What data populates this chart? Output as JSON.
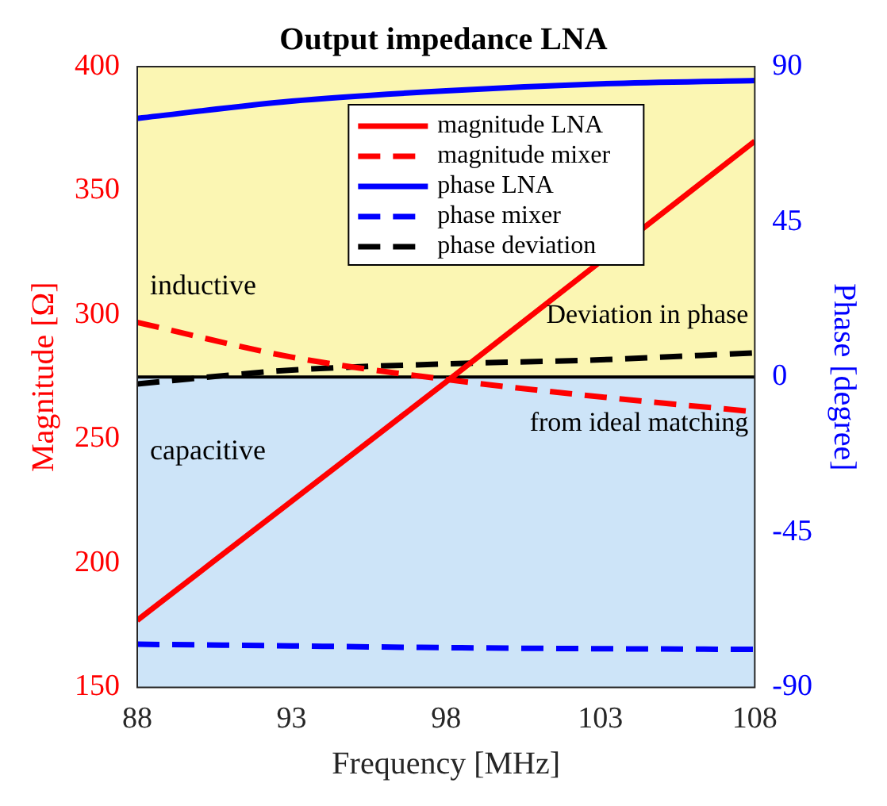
{
  "chart_data": {
    "type": "line",
    "title": "Output impedance LNA",
    "xlabel": "Frequency [MHz]",
    "ylabel": "Magnitude [Ω]",
    "y2label": "Phase [degree]",
    "x": [
      88,
      93,
      98,
      103,
      108
    ],
    "series": [
      {
        "name": "magnitude LNA",
        "color": "#ff0000",
        "line_style": "solid",
        "x": [
          88,
          93,
          98,
          108
        ],
        "values": [
          177,
          225,
          273,
          370
        ]
      },
      {
        "name": "magnitude mixer",
        "color": "#ff0000",
        "line_style": "dashed",
        "values": [
          297,
          283,
          274,
          267,
          261
        ]
      },
      {
        "name": "phase LNA",
        "color": "#0000ff",
        "line_style": "solid",
        "axis": "y2",
        "values": [
          75,
          80,
          83,
          85,
          86
        ]
      },
      {
        "name": "phase mixer",
        "color": "#0000ff",
        "line_style": "dashed",
        "axis": "y2",
        "values": [
          -77.5,
          -78,
          -78.5,
          -78.8,
          -79
        ]
      },
      {
        "name": "phase deviation",
        "color": "#000000",
        "line_style": "dashed",
        "axis": "y2",
        "values": [
          -2,
          2,
          3.8,
          5,
          7
        ]
      }
    ],
    "xlim": [
      88,
      108
    ],
    "xticks": [
      88,
      93,
      98,
      103,
      108
    ],
    "ylim": [
      150,
      400
    ],
    "yticks": [
      150,
      200,
      250,
      300,
      350,
      400
    ],
    "y2lim": [
      -90,
      90
    ],
    "y2ticks": [
      -90,
      -45,
      0,
      45,
      90
    ],
    "bands": [
      {
        "axis": "y2",
        "from": 0,
        "to": 90,
        "label": "inductive",
        "color": "#fbf6b3"
      },
      {
        "axis": "y2",
        "from": -90,
        "to": 0,
        "label": "capacitive",
        "color": "#cde4f8"
      }
    ],
    "ref_lines": [
      {
        "axis": "y2",
        "value": 0,
        "color": "#000000",
        "line_style": "solid"
      }
    ],
    "annotations": [
      "Deviation in phase",
      "from ideal matching"
    ],
    "legend": "top right",
    "grid": false,
    "marker": "none"
  }
}
